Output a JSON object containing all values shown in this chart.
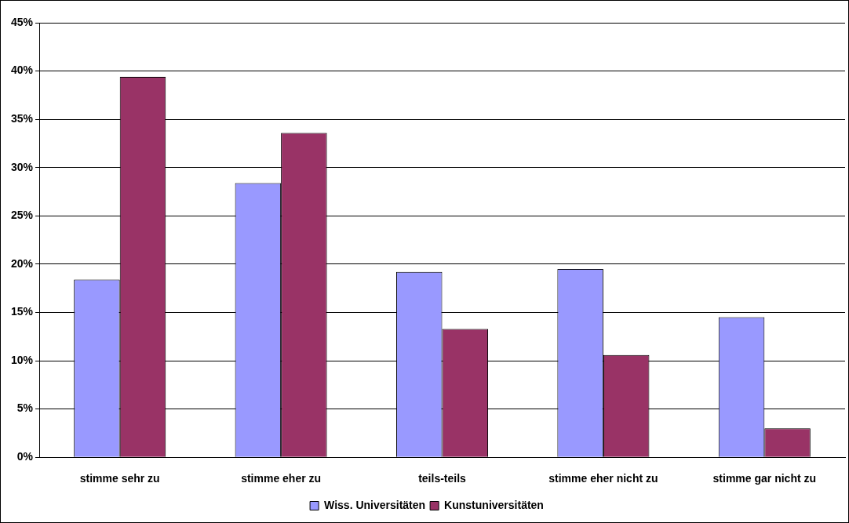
{
  "chart_data": {
    "type": "bar",
    "categories": [
      "stimme sehr zu",
      "stimme eher zu",
      "teils-teils",
      "stimme eher nicht zu",
      "stimme gar nicht zu"
    ],
    "series": [
      {
        "name": "Wiss. Universitäten",
        "color": "#9999ff",
        "values": [
          18.4,
          28.4,
          19.2,
          19.5,
          14.5
        ]
      },
      {
        "name": "Kunstuniversitäten",
        "color": "#993366",
        "values": [
          39.4,
          33.6,
          13.3,
          10.6,
          3.0
        ]
      }
    ],
    "ylim": [
      0,
      45
    ],
    "yticks": [
      {
        "value": 0,
        "label": "0%"
      },
      {
        "value": 5,
        "label": "5%"
      },
      {
        "value": 10,
        "label": "10%"
      },
      {
        "value": 15,
        "label": "15%"
      },
      {
        "value": 20,
        "label": "20%"
      },
      {
        "value": 25,
        "label": "25%"
      },
      {
        "value": 30,
        "label": "30%"
      },
      {
        "value": 35,
        "label": "35%"
      },
      {
        "value": 40,
        "label": "40%"
      },
      {
        "value": 45,
        "label": "45%"
      }
    ],
    "grid": "y",
    "legend": "bottom"
  }
}
